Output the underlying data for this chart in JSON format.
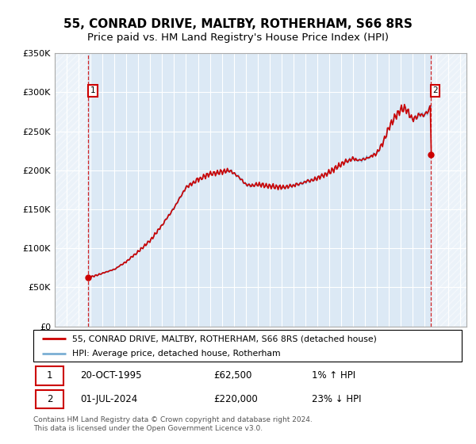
{
  "title": "55, CONRAD DRIVE, MALTBY, ROTHERHAM, S66 8RS",
  "subtitle": "Price paid vs. HM Land Registry's House Price Index (HPI)",
  "ylim": [
    0,
    350000
  ],
  "yticks": [
    0,
    50000,
    100000,
    150000,
    200000,
    250000,
    300000,
    350000
  ],
  "ytick_labels": [
    "£0",
    "£50K",
    "£100K",
    "£150K",
    "£200K",
    "£250K",
    "£300K",
    "£350K"
  ],
  "xlim_start": 1993.0,
  "xlim_end": 2027.5,
  "point1_x": 1995.8,
  "point1_y": 62500,
  "point1_label": "1",
  "point1_date": "20-OCT-1995",
  "point1_price": "£62,500",
  "point1_hpi": "1% ↑ HPI",
  "point2_x": 2024.5,
  "point2_y": 220000,
  "point2_label": "2",
  "point2_date": "01-JUL-2024",
  "point2_price": "£220,000",
  "point2_hpi": "23% ↓ HPI",
  "legend_label1": "55, CONRAD DRIVE, MALTBY, ROTHERHAM, S66 8RS (detached house)",
  "legend_label2": "HPI: Average price, detached house, Rotherham",
  "footer": "Contains HM Land Registry data © Crown copyright and database right 2024.\nThis data is licensed under the Open Government Licence v3.0.",
  "hpi_color": "#7bafd4",
  "price_color": "#cc0000",
  "bg_color": "#dce9f5",
  "grid_color": "#b8cfe8",
  "title_fontsize": 11,
  "subtitle_fontsize": 9.5
}
